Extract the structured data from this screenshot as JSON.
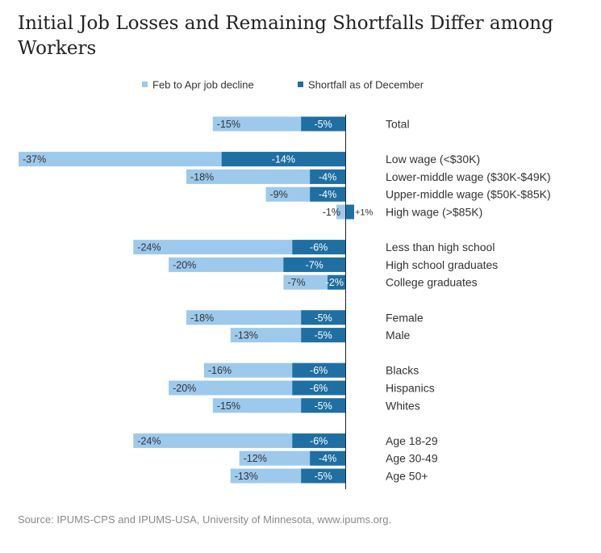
{
  "title": "Initial Job Losses and Remaining Shortfalls Differ among Workers",
  "source": "Source: IPUMS-CPS and IPUMS-USA, University of Minnesota, www.ipums.org.",
  "colors": {
    "decline": "#9dc9ec",
    "shortfall": "#1f6fa3",
    "axis": "#222222",
    "label_dark": "#333333",
    "label_light": "#ffffff"
  },
  "chart_data": {
    "type": "bar",
    "orientation": "horizontal",
    "legend_position": "top-center",
    "xlim": [
      -38,
      1
    ],
    "grid": false,
    "series": [
      {
        "name": "Feb to Apr job decline",
        "color": "#9dc9ec"
      },
      {
        "name": "Shortfall as of December",
        "color": "#1f6fa3"
      }
    ],
    "groups": [
      {
        "rows": [
          {
            "label": "Total",
            "decline": -15,
            "shortfall": -5,
            "decline_text": "-15%",
            "shortfall_text": "-5%"
          }
        ]
      },
      {
        "rows": [
          {
            "label": "Low wage (<$30K)",
            "decline": -37,
            "shortfall": -14,
            "decline_text": "-37%",
            "shortfall_text": "-14%"
          },
          {
            "label": "Lower-middle wage ($30K-$49K)",
            "decline": -18,
            "shortfall": -4,
            "decline_text": "-18%",
            "shortfall_text": "-4%"
          },
          {
            "label": "Upper-middle wage ($50K-$85K)",
            "decline": -9,
            "shortfall": -4,
            "decline_text": "-9%",
            "shortfall_text": "-4%"
          },
          {
            "label": "High wage (>$85K)",
            "decline": -1,
            "shortfall": 1,
            "decline_text": "-1%",
            "shortfall_text": "+1%"
          }
        ]
      },
      {
        "rows": [
          {
            "label": "Less than high school",
            "decline": -24,
            "shortfall": -6,
            "decline_text": "-24%",
            "shortfall_text": "-6%"
          },
          {
            "label": "High school graduates",
            "decline": -20,
            "shortfall": -7,
            "decline_text": "-20%",
            "shortfall_text": "-7%"
          },
          {
            "label": "College graduates",
            "decline": -7,
            "shortfall": -2,
            "decline_text": "-7%",
            "shortfall_text": "-2%"
          }
        ]
      },
      {
        "rows": [
          {
            "label": "Female",
            "decline": -18,
            "shortfall": -5,
            "decline_text": "-18%",
            "shortfall_text": "-5%"
          },
          {
            "label": "Male",
            "decline": -13,
            "shortfall": -5,
            "decline_text": "-13%",
            "shortfall_text": "-5%"
          }
        ]
      },
      {
        "rows": [
          {
            "label": "Blacks",
            "decline": -16,
            "shortfall": -6,
            "decline_text": "-16%",
            "shortfall_text": "-6%"
          },
          {
            "label": "Hispanics",
            "decline": -20,
            "shortfall": -6,
            "decline_text": "-20%",
            "shortfall_text": "-6%"
          },
          {
            "label": "Whites",
            "decline": -15,
            "shortfall": -5,
            "decline_text": "-15%",
            "shortfall_text": "-5%"
          }
        ]
      },
      {
        "rows": [
          {
            "label": "Age 18-29",
            "decline": -24,
            "shortfall": -6,
            "decline_text": "-24%",
            "shortfall_text": "-6%"
          },
          {
            "label": "Age 30-49",
            "decline": -12,
            "shortfall": -4,
            "decline_text": "-12%",
            "shortfall_text": "-4%"
          },
          {
            "label": "Age 50+",
            "decline": -13,
            "shortfall": -5,
            "decline_text": "-13%",
            "shortfall_text": "-5%"
          }
        ]
      }
    ]
  }
}
